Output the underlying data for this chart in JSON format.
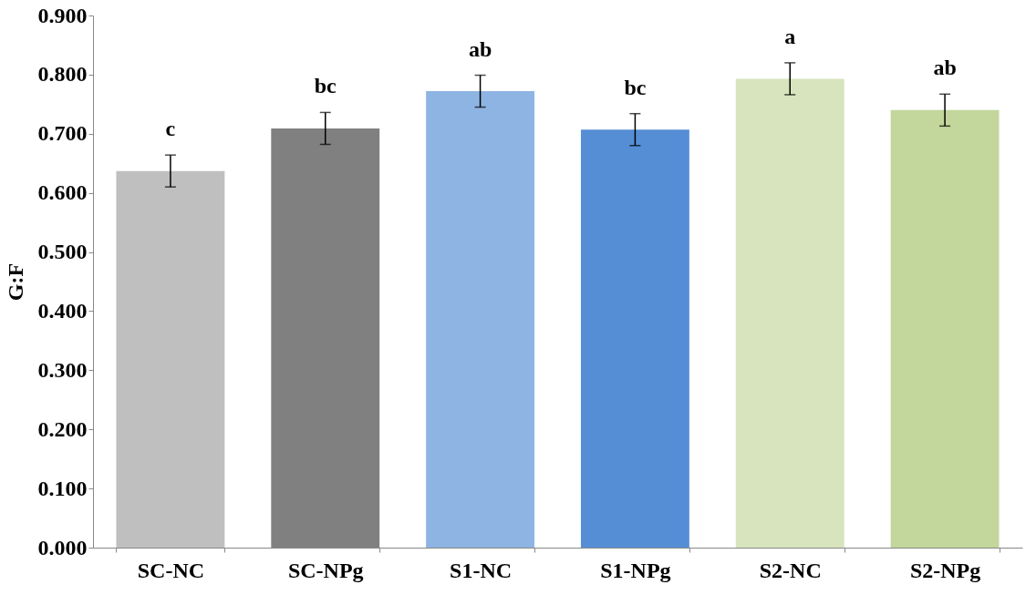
{
  "chart_data": {
    "type": "bar",
    "ylabel": "G:F",
    "categories": [
      "SC-NC",
      "SC-NPg",
      "S1-NC",
      "S1-NPg",
      "S2-NC",
      "S2-NPg"
    ],
    "values": [
      0.637,
      0.709,
      0.772,
      0.707,
      0.793,
      0.74
    ],
    "colors": [
      "#bfbfbf",
      "#808080",
      "#8eb4e3",
      "#558ed5",
      "#d7e4bd",
      "#c3d69b"
    ],
    "errors": [
      0.027,
      0.027,
      0.027,
      0.027,
      0.027,
      0.027
    ],
    "ylim": [
      0,
      0.9
    ],
    "yticks": [
      {
        "value": 0,
        "label": "0.000"
      },
      {
        "value": 0.1,
        "label": "0.100"
      },
      {
        "value": 0.2,
        "label": "0.200"
      },
      {
        "value": 0.3,
        "label": "0.300"
      },
      {
        "value": 0.4,
        "label": "0.400"
      },
      {
        "value": 0.5,
        "label": "0.500"
      },
      {
        "value": 0.6,
        "label": "0.600"
      },
      {
        "value": 0.7,
        "label": "0.700"
      },
      {
        "value": 0.8,
        "label": "0.800"
      },
      {
        "value": 0.9,
        "label": "0.900"
      }
    ],
    "annotations": [
      "c",
      "bc",
      "ab",
      "bc",
      "a",
      "ab"
    ],
    "grid": false
  }
}
